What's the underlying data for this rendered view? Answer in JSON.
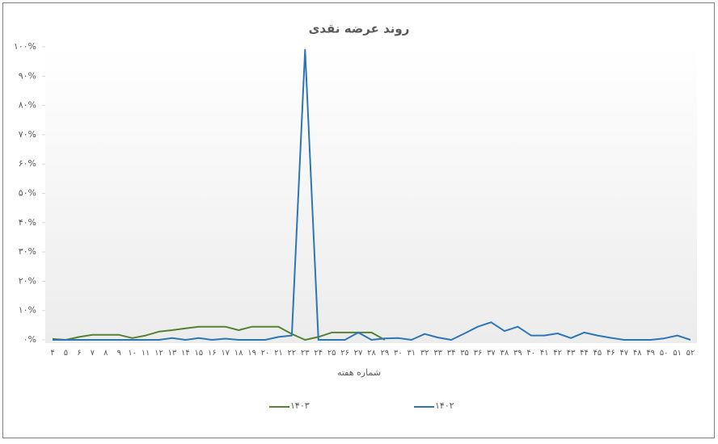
{
  "chart_data": {
    "type": "line",
    "title": "روند عرضه نقدی",
    "x_label": "شماره هفته",
    "categories": [
      "۴",
      "۵",
      "۶",
      "۷",
      "۸",
      "۹",
      "۱۰",
      "۱۱",
      "۱۲",
      "۱۳",
      "۱۴",
      "۱۵",
      "۱۶",
      "۱۷",
      "۱۸",
      "۱۹",
      "۲۰",
      "۲۱",
      "۲۲",
      "۲۳",
      "۲۴",
      "۲۵",
      "۲۶",
      "۲۷",
      "۲۸",
      "۲۹",
      "۳۰",
      "۳۱",
      "۳۲",
      "۳۳",
      "۳۴",
      "۳۵",
      "۳۶",
      "۳۷",
      "۳۸",
      "۳۹",
      "۴۰",
      "۴۱",
      "۴۲",
      "۴۳",
      "۴۴",
      "۴۵",
      "۴۶",
      "۴۷",
      "۴۸",
      "۴۹",
      "۵۰",
      "۵۱",
      "۵۲"
    ],
    "series": [
      {
        "name": "۱۴۰۳",
        "color": "#548235",
        "values": [
          0.3,
          0,
          1,
          1.7,
          1.7,
          1.7,
          0.6,
          1.5,
          2.8,
          3.3,
          3.9,
          4.5,
          4.5,
          4.5,
          3.3,
          4.5,
          4.5,
          4.5,
          2,
          0,
          1,
          2.5,
          2.5,
          2.5,
          2.5,
          0,
          null,
          null,
          null,
          null,
          null,
          null,
          null,
          null,
          null,
          null,
          null,
          null,
          null,
          null,
          null,
          null,
          null,
          null,
          null,
          null,
          null,
          null,
          null
        ]
      },
      {
        "name": "۱۴۰۲",
        "color": "#2e75b6",
        "values": [
          0,
          0,
          0,
          0,
          0,
          0,
          0,
          0,
          0,
          0.6,
          0,
          0.6,
          0,
          0.4,
          0,
          0,
          0,
          1,
          1.5,
          99,
          0,
          0,
          0,
          2.5,
          0,
          0.5,
          0.6,
          0,
          2,
          0.8,
          0,
          2.2,
          4.5,
          6,
          3,
          4.5,
          1.5,
          1.5,
          2.2,
          0.6,
          2.5,
          1.5,
          0.7,
          0,
          0,
          0,
          0.5,
          1.5,
          0
        ]
      }
    ],
    "ylim": [
      0,
      100
    ],
    "yticks": [
      {
        "value": 0,
        "label": "۰%"
      },
      {
        "value": 10,
        "label": "۱۰%"
      },
      {
        "value": 20,
        "label": "۲۰%"
      },
      {
        "value": 30,
        "label": "۳۰%"
      },
      {
        "value": 40,
        "label": "۴۰%"
      },
      {
        "value": 50,
        "label": "۵۰%"
      },
      {
        "value": 60,
        "label": "۶۰%"
      },
      {
        "value": 70,
        "label": "۷۰%"
      },
      {
        "value": 80,
        "label": "۸۰%"
      },
      {
        "value": 90,
        "label": "۹۰%"
      },
      {
        "value": 100,
        "label": "۱۰۰%"
      }
    ]
  }
}
